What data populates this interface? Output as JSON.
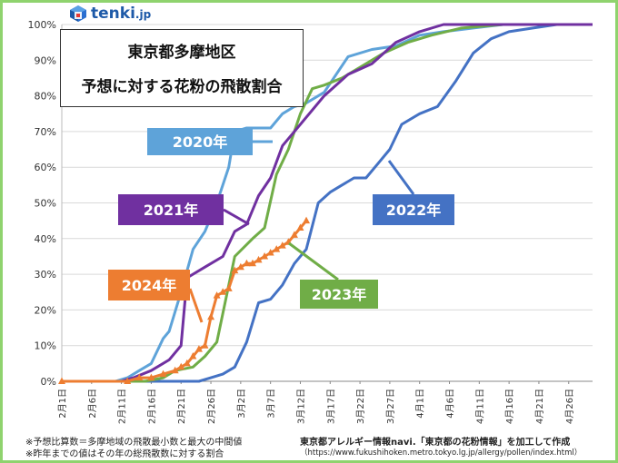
{
  "logo": {
    "brand": "tenki",
    "suffix": ".jp"
  },
  "title": {
    "line1": "東京都多摩地区",
    "line2": "予想に対する花粉の飛散割合"
  },
  "notes": [
    "※予想比算数＝多摩地域の飛散最小数と最大の中間値",
    "※昨年までの値はその年の総飛散数に対する割合"
  ],
  "source": {
    "text": "東京都アレルギー情報navi.「東京都の花粉情報」を加工して作成",
    "url": "（https://www.fukushihoken.metro.tokyo.lg.jp/allergy/pollen/index.html）"
  },
  "colors": {
    "2020": "#5ea3d9",
    "2021": "#7030a0",
    "2022": "#4472c4",
    "2023": "#70ad47",
    "2024": "#ed7d31"
  },
  "chart_data": {
    "type": "line",
    "x_type": "date",
    "x_range": [
      "2月1日",
      "4月30日"
    ],
    "xticks": [
      "2月1日",
      "2月6日",
      "2月11日",
      "2月16日",
      "2月21日",
      "2月26日",
      "3月2日",
      "3月7日",
      "3月12日",
      "3月17日",
      "3月22日",
      "3月27日",
      "4月1日",
      "4月6日",
      "4月11日",
      "4月16日",
      "4月21日",
      "4月26日"
    ],
    "yticks": [
      "0%",
      "10%",
      "20%",
      "30%",
      "40%",
      "50%",
      "60%",
      "70%",
      "80%",
      "90%",
      "100%"
    ],
    "ylim": [
      0,
      100
    ],
    "grid": true,
    "series": [
      {
        "name": "2020年",
        "x": [
          "2月1日",
          "2月10日",
          "2月12日",
          "2月14日",
          "2月16日",
          "2月18日",
          "2月19日",
          "2月21日",
          "2月23日",
          "2月25日",
          "2月27日",
          "2月29日",
          "3月1日",
          "3月3日",
          "3月5日",
          "3月7日",
          "3月9日",
          "3月11日",
          "3月13日",
          "3月16日",
          "3月20日",
          "3月24日",
          "3月28日",
          "4月1日",
          "4月5日",
          "4月10日",
          "4月15日",
          "4月20日",
          "4月30日"
        ],
        "y": [
          0,
          0,
          1,
          3,
          5,
          12,
          14,
          25,
          37,
          42,
          50,
          60,
          70,
          71,
          71,
          71,
          75,
          77,
          78,
          81,
          91,
          93,
          94,
          97,
          98,
          99,
          100,
          100,
          100
        ]
      },
      {
        "name": "2021年",
        "x": [
          "2月1日",
          "2月11日",
          "2月13日",
          "2月16日",
          "2月19日",
          "2月21日",
          "2月22日",
          "2月25日",
          "2月28日",
          "3月1日",
          "3月3日",
          "3月5日",
          "3月7日",
          "3月9日",
          "3月11日",
          "3月13日",
          "3月16日",
          "3月20日",
          "3月24日",
          "3月28日",
          "4月1日",
          "4月5日",
          "4月30日"
        ],
        "y": [
          0,
          0,
          1,
          3,
          6,
          10,
          29,
          32,
          35,
          42,
          44,
          52,
          57,
          66,
          70,
          74,
          80,
          86,
          89,
          95,
          98,
          100,
          100
        ]
      },
      {
        "name": "2022年",
        "x": [
          "2月1日",
          "2月24日",
          "2月26日",
          "2月28日",
          "3月1日",
          "3月3日",
          "3月5日",
          "3月7日",
          "3月9日",
          "3月11日",
          "3月13日",
          "3月15日",
          "3月17日",
          "3月19日",
          "3月21日",
          "3月23日",
          "3月25日",
          "3月27日",
          "3月29日",
          "4月1日",
          "4月4日",
          "4月7日",
          "4月10日",
          "4月13日",
          "4月16日",
          "4月20日",
          "4月24日",
          "4月30日"
        ],
        "y": [
          0,
          0,
          1,
          2,
          4,
          11,
          22,
          23,
          27,
          33,
          37,
          50,
          53,
          55,
          57,
          57,
          61,
          65,
          72,
          75,
          77,
          84,
          92,
          96,
          98,
          99,
          100,
          100
        ]
      },
      {
        "name": "2023年",
        "x": [
          "2月1日",
          "2月15日",
          "2月18日",
          "2月20日",
          "2月23日",
          "2月25日",
          "2月27日",
          "3月1日",
          "3月4日",
          "3月6日",
          "3月8日",
          "3月10日",
          "3月12日",
          "3月14日",
          "3月16日",
          "3月19日",
          "3月22日",
          "3月26日",
          "3月30日",
          "4月3日",
          "4月8日",
          "4月15日",
          "4月30日"
        ],
        "y": [
          0,
          0,
          1,
          3,
          4,
          7,
          11,
          35,
          40,
          43,
          58,
          65,
          75,
          82,
          83,
          85,
          88,
          92,
          95,
          97,
          99,
          100,
          100
        ]
      },
      {
        "name": "2024年",
        "x": [
          "2月1日",
          "2月12日",
          "2月14日",
          "2月16日",
          "2月18日",
          "2月20日",
          "2月21日",
          "2月22日",
          "2月23日",
          "2月24日",
          "2月25日",
          "2月26日",
          "2月27日",
          "2月28日",
          "2月29日",
          "3月1日",
          "3月2日",
          "3月3日",
          "3月4日",
          "3月5日",
          "3月6日",
          "3月7日",
          "3月8日",
          "3月9日",
          "3月10日",
          "3月11日",
          "3月12日",
          "3月13日"
        ],
        "y": [
          0,
          0,
          1,
          1,
          2,
          3,
          4,
          5,
          7,
          9,
          10,
          18,
          24,
          25,
          26,
          31,
          32,
          33,
          33,
          34,
          35,
          36,
          37,
          38,
          39,
          41,
          43,
          45
        ]
      }
    ],
    "labels": {
      "2020": "2020年",
      "2021": "2021年",
      "2022": "2022年",
      "2023": "2023年",
      "2024": "2024年"
    }
  }
}
